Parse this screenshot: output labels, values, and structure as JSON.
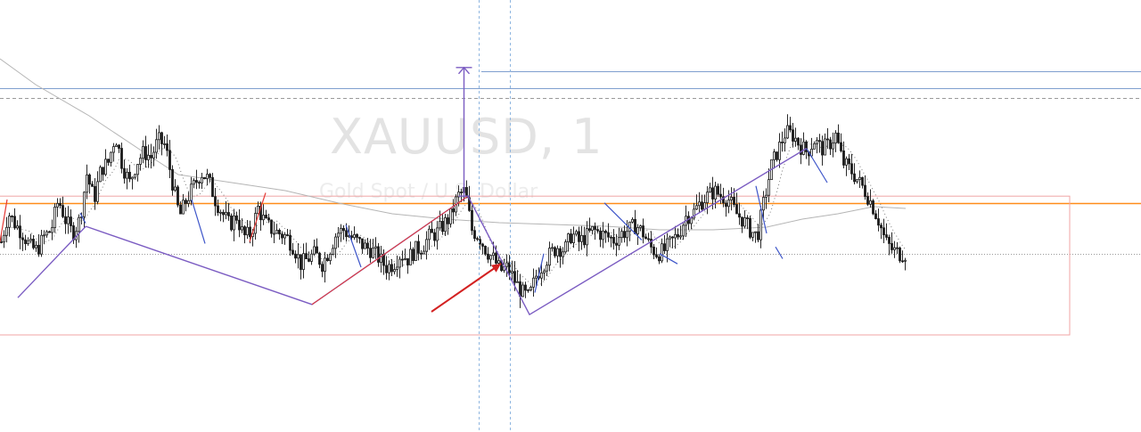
{
  "watermark": {
    "symbol": "XAUUSD, 1",
    "description": "Gold Spot / U.S. Dollar"
  },
  "colors": {
    "background": "#ffffff",
    "candle": "#1a1a1a",
    "candle_wick": "#2a2a2a",
    "orange_level": "#ff8c1a",
    "blue_level": "#7f9fcf",
    "dotted_level": "#9a9a9a",
    "zone_border": "#f0a6a6",
    "purple_zigzag": "#7b5cc2",
    "blue_swing": "#3d55c9",
    "red_swing": "#e53935",
    "slow_ma": "#b5b5b5",
    "fast_ma": "#7a7a7a",
    "crosshair": "#8fb6e0",
    "arrow": "#d32121"
  },
  "chart_data": {
    "type": "candlestick",
    "symbol": "XAUUSD",
    "timeframe": "1",
    "description": "Gold Spot / U.S. Dollar",
    "price_axis_visible": false,
    "time_axis_visible": false,
    "close_path_bars": [
      0,
      8,
      16,
      24,
      32,
      40,
      48,
      56,
      64,
      72,
      80,
      88,
      96,
      104,
      112,
      120,
      128,
      136,
      144,
      152,
      160,
      168,
      176,
      184,
      192,
      200,
      208,
      216,
      224,
      232,
      240,
      248,
      256,
      264,
      272,
      280,
      288,
      296,
      304,
      312,
      320,
      328,
      336,
      344,
      352,
      360,
      368,
      376,
      384,
      392,
      400,
      408,
      416,
      424,
      432,
      440,
      448,
      456,
      464,
      472,
      480,
      488,
      496,
      504,
      512,
      520,
      528,
      536,
      544,
      552,
      560,
      568,
      576,
      584,
      592,
      600,
      608,
      616,
      624,
      632,
      640,
      648,
      656,
      664,
      672,
      680,
      688,
      696,
      704,
      712,
      720,
      728,
      736,
      744,
      752,
      760,
      768,
      776,
      784,
      792,
      800,
      808,
      816,
      824,
      832,
      840,
      848,
      856,
      864,
      872,
      880,
      888,
      896,
      904,
      912,
      920,
      928,
      936,
      944,
      952,
      960,
      968,
      976,
      984,
      992,
      1000,
      1008,
      1016
    ],
    "close_path": [
      0.35,
      0.52,
      0.45,
      0.4,
      0.32,
      0.3,
      0.38,
      0.42,
      0.6,
      0.48,
      0.4,
      0.48,
      0.75,
      0.6,
      0.78,
      0.82,
      0.98,
      0.8,
      0.7,
      0.82,
      0.88,
      0.85,
      0.95,
      0.92,
      0.7,
      0.5,
      0.6,
      0.68,
      0.76,
      0.72,
      0.6,
      0.52,
      0.45,
      0.5,
      0.38,
      0.4,
      0.55,
      0.46,
      0.42,
      0.4,
      0.38,
      0.32,
      0.22,
      0.25,
      0.28,
      0.22,
      0.3,
      0.4,
      0.42,
      0.38,
      0.35,
      0.32,
      0.3,
      0.25,
      0.2,
      0.22,
      0.28,
      0.25,
      0.3,
      0.32,
      0.38,
      0.4,
      0.45,
      0.5,
      0.62,
      0.65,
      0.42,
      0.38,
      0.3,
      0.25,
      0.18,
      0.2,
      0.12,
      0.05,
      0.02,
      0.15,
      0.22,
      0.28,
      0.32,
      0.3,
      0.4,
      0.35,
      0.38,
      0.42,
      0.4,
      0.38,
      0.36,
      0.4,
      0.42,
      0.45,
      0.4,
      0.32,
      0.28,
      0.3,
      0.35,
      0.4,
      0.5,
      0.52,
      0.58,
      0.62,
      0.65,
      0.62,
      0.6,
      0.52,
      0.48,
      0.42,
      0.38,
      0.6,
      0.8,
      0.9,
      1.0,
      0.98,
      0.92,
      0.88,
      0.95,
      0.9,
      0.92,
      0.98,
      0.82,
      0.78,
      0.72,
      0.66,
      0.58,
      0.48,
      0.35,
      0.3,
      0.28,
      0.28
    ],
    "normalization": "close_path values are fractions of the visible price range: 1.00 = highest visible close, 0.00 = lowest visible close",
    "horizontal_levels": [
      {
        "name": "orange-level",
        "price_fraction": 0.58,
        "style": "solid",
        "color": "#ff8c1a"
      },
      {
        "name": "upper-blue-level-1",
        "price_fraction": 1.36,
        "style": "solid",
        "color": "#7f9fcf",
        "partial": true
      },
      {
        "name": "upper-blue-level-2",
        "price_fraction": 1.26,
        "style": "solid",
        "color": "#7f9fcf"
      },
      {
        "name": "upper-dashed-level",
        "price_fraction": 1.2,
        "style": "dashed",
        "color": "#9a9a9a"
      },
      {
        "name": "current-price-level",
        "price_fraction": 0.28,
        "style": "dotted",
        "color": "#9a9a9a"
      }
    ],
    "zone": {
      "top_fraction": 0.62,
      "bottom_fraction": -0.2,
      "end_bar": 1200
    },
    "measure_tool": {
      "bar": 520,
      "from_fraction": 0.62,
      "to_fraction": 1.38
    },
    "crosshair_bars": [
      537,
      572
    ],
    "zigzag_points": [
      [
        20,
        0.02
      ],
      [
        96,
        0.44
      ],
      [
        97,
        0.44
      ],
      [
        350,
        -0.02
      ],
      [
        525,
        0.62
      ],
      [
        594,
        -0.08
      ],
      [
        904,
        0.9
      ],
      [
        905,
        0.9
      ]
    ],
    "annotation_arrow": {
      "from": [
        484,
        0.0
      ],
      "to": [
        562,
        0.28
      ]
    },
    "grid": false,
    "legend": "none"
  }
}
